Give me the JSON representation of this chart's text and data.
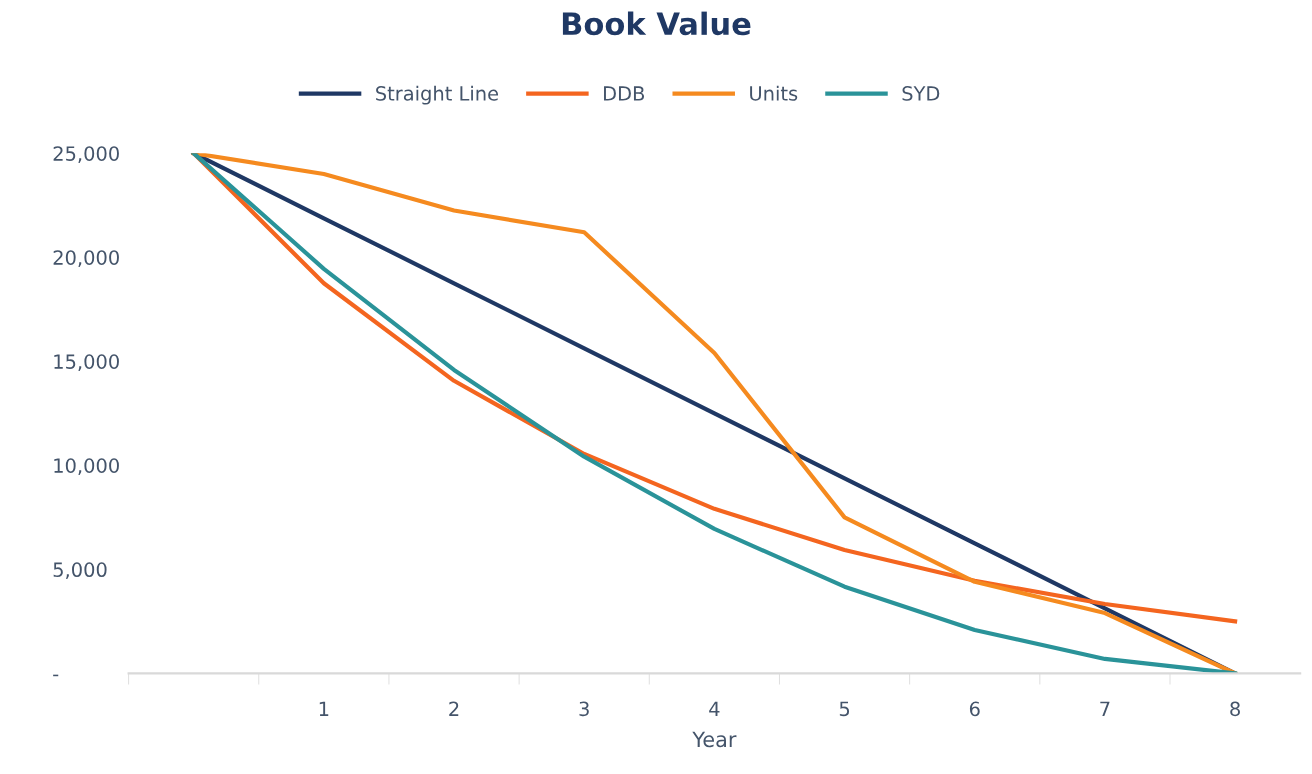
{
  "chart_data": {
    "type": "line",
    "title": "Book Value",
    "xlabel": "Year",
    "categories": [
      null,
      "1",
      "2",
      "3",
      "4",
      "5",
      "6",
      "7",
      "8"
    ],
    "series": [
      {
        "name": "Straight Line",
        "color": "#1f3864",
        "values": [
          25000,
          21875,
          18750,
          15625,
          12500,
          9375,
          6250,
          3125,
          0
        ]
      },
      {
        "name": "DDB",
        "color": "#f4651f",
        "values": [
          25000,
          18750,
          14063,
          10547,
          7910,
          5933,
          4449,
          3337,
          2503
        ]
      },
      {
        "name": "Units",
        "color": "#f58a1f",
        "values": [
          25000,
          24000,
          22250,
          21200,
          15400,
          7500,
          4400,
          2900,
          0
        ]
      },
      {
        "name": "SYD",
        "color": "#2a9399",
        "values": [
          25000,
          19444,
          14583,
          10417,
          6944,
          4167,
          2083,
          694,
          0
        ]
      }
    ],
    "ylim": [
      0,
      25000
    ],
    "yticks": [
      {
        "value": 0,
        "label": "-"
      },
      {
        "value": 5000,
        "label": "5,000"
      },
      {
        "value": 10000,
        "label": "10,000"
      },
      {
        "value": 15000,
        "label": "15,000"
      },
      {
        "value": 20000,
        "label": "20,000"
      },
      {
        "value": 25000,
        "label": "25,000"
      }
    ],
    "grid": false,
    "legend": "top",
    "marker": "none",
    "line_style": "solid"
  }
}
